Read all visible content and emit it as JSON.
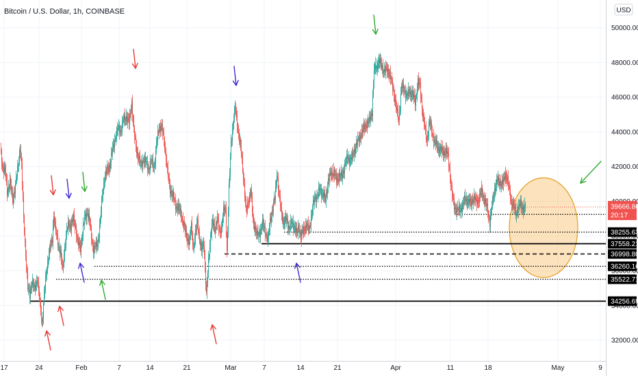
{
  "header": {
    "title": "Bitcoin / U.S. Dollar, 1h, COINBASE"
  },
  "currency_badge": "USD",
  "chart_data": {
    "type": "candlestick",
    "title": "Bitcoin / U.S. Dollar, 1h, COINBASE",
    "ylim": [
      30800,
      51600
    ],
    "y_ticks": [
      "32000.00",
      "34000.00",
      "36000.00",
      "38000.00",
      "40000.00",
      "42000.00",
      "44000.00",
      "46000.00",
      "48000.00",
      "50000.00"
    ],
    "y_tick_values": [
      32000,
      34000,
      36000,
      38000,
      40000,
      42000,
      44000,
      46000,
      48000,
      50000
    ],
    "x_ticks": [
      "17",
      "24",
      "Feb",
      "7",
      "14",
      "21",
      "Mar",
      "7",
      "14",
      "21",
      "Apr",
      "11",
      "18",
      "May",
      "9"
    ],
    "price_path": [
      [
        0,
        43000
      ],
      [
        3,
        42000
      ],
      [
        7,
        41800
      ],
      [
        10,
        40500
      ],
      [
        14,
        41200
      ],
      [
        18,
        40000
      ],
      [
        22,
        41000
      ],
      [
        26,
        42000
      ],
      [
        29,
        43200
      ],
      [
        31,
        42000
      ],
      [
        34,
        39000
      ],
      [
        37,
        37000
      ],
      [
        40,
        35000
      ],
      [
        43,
        34600
      ],
      [
        46,
        35400
      ],
      [
        50,
        34900
      ],
      [
        54,
        35600
      ],
      [
        58,
        34000
      ],
      [
        61,
        33000
      ],
      [
        64,
        34600
      ],
      [
        67,
        35800
      ],
      [
        70,
        36800
      ],
      [
        73,
        37400
      ],
      [
        76,
        37800
      ],
      [
        78,
        39300
      ],
      [
        81,
        38200
      ],
      [
        85,
        37500
      ],
      [
        88,
        37000
      ],
      [
        91,
        36000
      ],
      [
        94,
        37400
      ],
      [
        97,
        38300
      ],
      [
        100,
        38700
      ],
      [
        103,
        38600
      ],
      [
        107,
        39000
      ],
      [
        110,
        38500
      ],
      [
        113,
        37600
      ],
      [
        117,
        37300
      ],
      [
        120,
        38200
      ],
      [
        123,
        39000
      ],
      [
        127,
        39400
      ],
      [
        130,
        38900
      ],
      [
        133,
        38000
      ],
      [
        136,
        37200
      ],
      [
        140,
        37400
      ],
      [
        143,
        37800
      ],
      [
        146,
        38900
      ],
      [
        149,
        40400
      ],
      [
        152,
        41300
      ],
      [
        156,
        41800
      ],
      [
        160,
        42100
      ],
      [
        164,
        43000
      ],
      [
        168,
        43700
      ],
      [
        172,
        44200
      ],
      [
        176,
        44100
      ],
      [
        180,
        44700
      ],
      [
        184,
        44900
      ],
      [
        188,
        44500
      ],
      [
        192,
        45700
      ],
      [
        195,
        44000
      ],
      [
        198,
        43200
      ],
      [
        201,
        42600
      ],
      [
        205,
        42100
      ],
      [
        209,
        42400
      ],
      [
        213,
        42200
      ],
      [
        217,
        41900
      ],
      [
        221,
        42300
      ],
      [
        225,
        42000
      ],
      [
        229,
        43600
      ],
      [
        232,
        44300
      ],
      [
        236,
        44200
      ],
      [
        240,
        43300
      ],
      [
        244,
        41700
      ],
      [
        248,
        40700
      ],
      [
        252,
        40300
      ],
      [
        256,
        39800
      ],
      [
        260,
        39600
      ],
      [
        264,
        39300
      ],
      [
        268,
        38600
      ],
      [
        272,
        38000
      ],
      [
        276,
        37600
      ],
      [
        279,
        38600
      ],
      [
        282,
        37300
      ],
      [
        285,
        38100
      ],
      [
        288,
        38900
      ],
      [
        291,
        37800
      ],
      [
        294,
        37100
      ],
      [
        297,
        37700
      ],
      [
        299,
        36200
      ],
      [
        301,
        34500
      ],
      [
        304,
        36600
      ],
      [
        307,
        38000
      ],
      [
        310,
        38800
      ],
      [
        313,
        38400
      ],
      [
        317,
        39000
      ],
      [
        320,
        38200
      ],
      [
        323,
        38500
      ],
      [
        326,
        39400
      ],
      [
        329,
        39600
      ],
      [
        331,
        37100
      ],
      [
        334,
        40700
      ],
      [
        337,
        43400
      ],
      [
        340,
        44500
      ],
      [
        343,
        45400
      ],
      [
        346,
        44500
      ],
      [
        349,
        43600
      ],
      [
        352,
        42800
      ],
      [
        356,
        41000
      ],
      [
        359,
        39300
      ],
      [
        362,
        40000
      ],
      [
        366,
        40600
      ],
      [
        369,
        38900
      ],
      [
        372,
        38500
      ],
      [
        375,
        38000
      ],
      [
        379,
        38200
      ],
      [
        383,
        38700
      ],
      [
        387,
        38300
      ],
      [
        391,
        37700
      ],
      [
        394,
        38900
      ],
      [
        397,
        39400
      ],
      [
        401,
        40200
      ],
      [
        404,
        41700
      ],
      [
        407,
        40300
      ],
      [
        411,
        39300
      ],
      [
        414,
        38700
      ],
      [
        418,
        39000
      ],
      [
        422,
        38400
      ],
      [
        426,
        38800
      ],
      [
        430,
        38500
      ],
      [
        433,
        38100
      ],
      [
        436,
        38600
      ],
      [
        439,
        37900
      ],
      [
        443,
        38400
      ],
      [
        447,
        38600
      ],
      [
        451,
        38400
      ],
      [
        455,
        39300
      ],
      [
        459,
        40200
      ],
      [
        463,
        40300
      ],
      [
        467,
        40700
      ],
      [
        471,
        40400
      ],
      [
        475,
        40100
      ],
      [
        479,
        41200
      ],
      [
        483,
        41600
      ],
      [
        487,
        41700
      ],
      [
        491,
        41200
      ],
      [
        495,
        41500
      ],
      [
        499,
        41400
      ],
      [
        503,
        42100
      ],
      [
        507,
        42500
      ],
      [
        511,
        42400
      ],
      [
        515,
        42600
      ],
      [
        519,
        43200
      ],
      [
        523,
        43500
      ],
      [
        527,
        43900
      ],
      [
        531,
        44200
      ],
      [
        535,
        44500
      ],
      [
        539,
        44600
      ],
      [
        543,
        45200
      ],
      [
        546,
        47600
      ],
      [
        549,
        47700
      ],
      [
        553,
        48100
      ],
      [
        557,
        47800
      ],
      [
        561,
        47500
      ],
      [
        565,
        47600
      ],
      [
        569,
        47300
      ],
      [
        573,
        46600
      ],
      [
        576,
        46000
      ],
      [
        579,
        45200
      ],
      [
        582,
        44700
      ],
      [
        586,
        46600
      ],
      [
        590,
        46400
      ],
      [
        594,
        46100
      ],
      [
        598,
        46300
      ],
      [
        602,
        46200
      ],
      [
        606,
        45700
      ],
      [
        610,
        46900
      ],
      [
        613,
        46600
      ],
      [
        616,
        45400
      ],
      [
        620,
        44200
      ],
      [
        623,
        43500
      ],
      [
        627,
        44600
      ],
      [
        631,
        43900
      ],
      [
        635,
        43400
      ],
      [
        639,
        43100
      ],
      [
        643,
        43000
      ],
      [
        647,
        42800
      ],
      [
        651,
        42900
      ],
      [
        654,
        42600
      ],
      [
        657,
        41500
      ],
      [
        660,
        40300
      ],
      [
        663,
        39700
      ],
      [
        667,
        39500
      ],
      [
        671,
        39500
      ],
      [
        675,
        39700
      ],
      [
        679,
        40200
      ],
      [
        683,
        40000
      ],
      [
        687,
        39900
      ],
      [
        691,
        40200
      ],
      [
        695,
        40000
      ],
      [
        699,
        40100
      ],
      [
        703,
        40600
      ],
      [
        707,
        40100
      ],
      [
        711,
        39600
      ],
      [
        715,
        38800
      ],
      [
        718,
        39700
      ],
      [
        722,
        40700
      ],
      [
        726,
        41200
      ],
      [
        730,
        41100
      ],
      [
        734,
        41000
      ],
      [
        738,
        41600
      ],
      [
        741,
        41200
      ],
      [
        744,
        40500
      ],
      [
        747,
        39900
      ],
      [
        750,
        39700
      ],
      [
        753,
        39300
      ],
      [
        756,
        39600
      ],
      [
        760,
        39800
      ],
      [
        764,
        39600
      ],
      [
        767,
        39667
      ]
    ],
    "levels": [
      {
        "value": 39277.75,
        "label": "39277.75",
        "style": "dotted",
        "x0": 664
      },
      {
        "value": 38255.63,
        "label": "38255.63",
        "style": "dotted",
        "x0": 415
      },
      {
        "value": 37558.21,
        "label": "37558.21",
        "style": "solid",
        "x0": 382
      },
      {
        "value": 36998.8,
        "label": "36998.80",
        "style": "dashed",
        "x0": 328
      },
      {
        "value": 36260.16,
        "label": "36260.16",
        "style": "dotted",
        "x0": 138
      },
      {
        "value": 35522.71,
        "label": "35522.71",
        "style": "dotted",
        "x0": 82
      },
      {
        "value": 34256.69,
        "label": "34256.69",
        "style": "solid",
        "x0": 44
      }
    ],
    "last_price": {
      "value": 39666.86,
      "label": "39666.86",
      "countdown": "20:17",
      "color": "#ef5350"
    },
    "colors": {
      "up": "#26a69a",
      "down": "#ef5350",
      "grid": "#f0f3fa",
      "highlight_fill": "#f5b041",
      "highlight_stroke": "#e59b1c"
    },
    "highlight_zone": {
      "type": "circle"
    },
    "arrows": [
      {
        "color": "#e53935",
        "pos": [
          68,
          484
        ],
        "dir": "up"
      },
      {
        "color": "#e53935",
        "pos": [
          78,
          285
        ],
        "dir": "down"
      },
      {
        "color": "#e53935",
        "pos": [
          87,
          448
        ],
        "dir": "up"
      },
      {
        "color": "#e53935",
        "pos": [
          198,
          100
        ],
        "dir": "down"
      },
      {
        "color": "#e53935",
        "pos": [
          310,
          475
        ],
        "dir": "up"
      },
      {
        "color": "#3f2bd1",
        "pos": [
          101,
          290
        ],
        "dir": "down"
      },
      {
        "color": "#3f2bd1",
        "pos": [
          117,
          385
        ],
        "dir": "up"
      },
      {
        "color": "#3f2bd1",
        "pos": [
          345,
          125
        ],
        "dir": "down"
      },
      {
        "color": "#3f2bd1",
        "pos": [
          433,
          385
        ],
        "dir": "up"
      },
      {
        "color": "#2eaa2e",
        "pos": [
          124,
          280
        ],
        "dir": "down"
      },
      {
        "color": "#2eaa2e",
        "pos": [
          148,
          410
        ],
        "dir": "up"
      },
      {
        "color": "#2eaa2e",
        "pos": [
          549,
          50
        ],
        "dir": "down"
      },
      {
        "color": "#2eaa2e",
        "pos": [
          848,
          268
        ],
        "dir": "down-left"
      }
    ]
  }
}
